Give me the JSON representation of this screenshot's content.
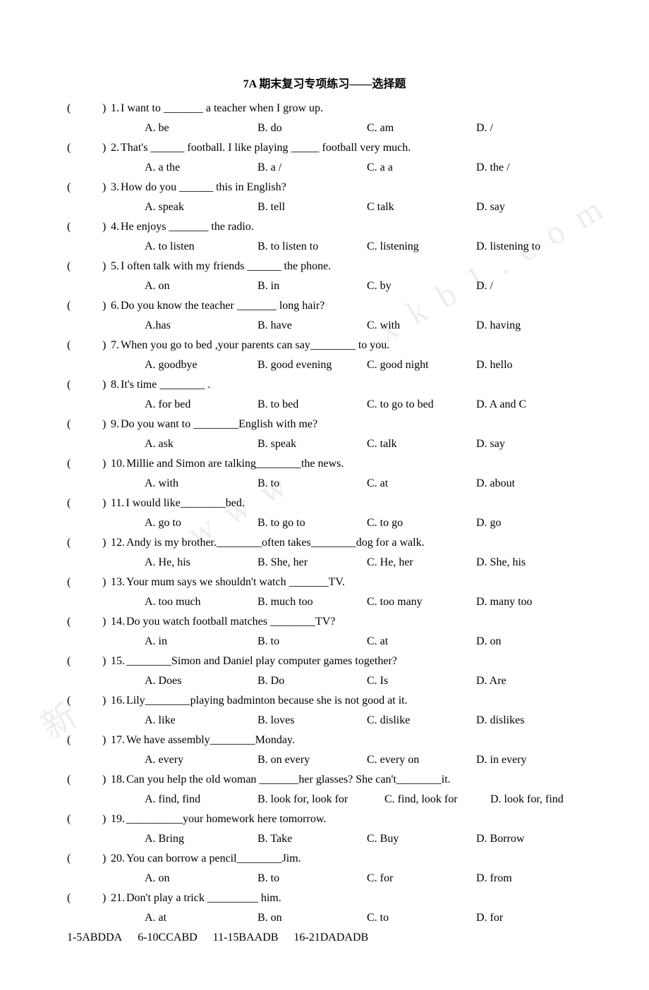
{
  "title": "7A  期末复习专项练习——选择题",
  "questions": [
    {
      "n": "1",
      "stem": "I want to  _______  a teacher when I grow up.",
      "opts": [
        "A. be",
        "B. do",
        "C. am",
        "D. /"
      ]
    },
    {
      "n": "2",
      "stem": "That's  ______  football. I like playing  _____  football very much.",
      "opts": [
        "A. a    the",
        "B. a /",
        "C. a    a",
        "D. the /"
      ]
    },
    {
      "n": "3",
      "stem": "How do you ______ this in English?",
      "opts": [
        "A. speak",
        "B. tell",
        "C talk",
        "D. say"
      ]
    },
    {
      "n": "4",
      "stem": "He enjoys  _______  the radio.",
      "opts": [
        "A. to listen",
        "B. to listen to",
        "C. listening",
        "D. listening to"
      ]
    },
    {
      "n": "5",
      "stem": "I often talk with my friends  ______  the phone.",
      "opts": [
        "A. on",
        "B. in",
        "C. by",
        "D. /"
      ]
    },
    {
      "n": "6",
      "stem": "Do you know the teacher  _______  long hair?",
      "opts": [
        "A.has",
        "B. have",
        "C. with",
        "D. having"
      ]
    },
    {
      "n": "7",
      "stem": "When you go to bed ,your parents can say________  to you.",
      "opts": [
        "A. goodbye",
        "B. good evening",
        "C. good night",
        "D. hello"
      ]
    },
    {
      "n": "8",
      "stem": "It's time  ________  .",
      "opts": [
        "A. for bed",
        "B. to bed",
        "C. to go to bed",
        "D. A and C"
      ]
    },
    {
      "n": "9",
      "stem": "Do you want to  ________English with me?",
      "opts": [
        "A. ask",
        "B. speak",
        "C. talk",
        "D. say"
      ]
    },
    {
      "n": "10",
      "stem": "Millie and Simon are talking________the news.",
      "opts": [
        "A. with",
        "B. to",
        "C. at",
        "D. about"
      ]
    },
    {
      "n": "11",
      "stem": "I would like________bed.",
      "opts": [
        "A. go to",
        "B. to go to",
        "C. to go",
        "D. go"
      ]
    },
    {
      "n": "12",
      "stem": "Andy is my brother.________often takes________dog for a walk.",
      "opts": [
        "A. He, his",
        "B. She, her",
        "C. He, her",
        "D. She, his"
      ]
    },
    {
      "n": "13",
      "stem": "Your mum says we shouldn't watch  _______TV.",
      "opts": [
        "A. too much",
        "B. much too",
        "C. too many",
        "D. many too"
      ]
    },
    {
      "n": "14",
      "stem": "Do you watch football matches  ________TV?",
      "opts": [
        "A. in",
        "B. to",
        "C. at",
        "D. on"
      ]
    },
    {
      "n": "15",
      "stem": "________Simon and Daniel play computer games together?",
      "opts": [
        "A. Does",
        "B. Do",
        "C. Is",
        "D. Are"
      ]
    },
    {
      "n": "16",
      "stem": "Lily________playing badminton because she is not good at it.",
      "opts": [
        "A. like",
        "B. loves",
        "C. dislike",
        "D. dislikes"
      ]
    },
    {
      "n": "17",
      "stem": "We have assembly________Monday.",
      "opts": [
        "A. every",
        "B. on every",
        "C. every on",
        "D. in every"
      ]
    },
    {
      "n": "18",
      "stem": "Can you help the old woman  _______her glasses? She can't________it.",
      "opts": [
        "A. find, find",
        "B. look for, look for",
        "C. find, look for",
        "D. look for, find"
      ]
    },
    {
      "n": "19",
      "stem": " __________your homework here tomorrow.",
      "opts": [
        "A. Bring",
        "B. Take",
        "C. Buy",
        "D. Borrow"
      ]
    },
    {
      "n": "20",
      "stem": "You can borrow a pencil________Jim.",
      "opts": [
        "A. on",
        "B. to",
        "C. for",
        "D. from"
      ]
    },
    {
      "n": "21",
      "stem": "Don't play a trick _________ him.",
      "opts": [
        "A. at",
        "B. on",
        "C. to",
        "D. for"
      ]
    }
  ],
  "answers": [
    "1-5ABDDA",
    "6-10CCABD",
    "11-15BAADB",
    "16-21DADADB"
  ],
  "layout": {
    "optWidths": {
      "a": 160,
      "b": 155,
      "c": 155
    },
    "q18OptWidths": {
      "a": 160,
      "b": 180,
      "c": 150
    }
  },
  "colors": {
    "text": "#000000",
    "bg": "#ffffff",
    "watermark": "rgba(0,0,0,0.07)"
  }
}
